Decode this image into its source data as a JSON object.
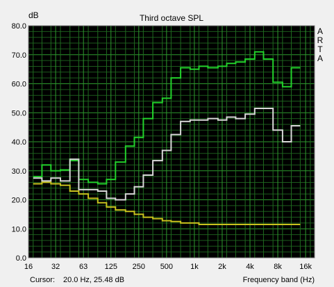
{
  "chart_data": {
    "type": "line",
    "title": "Third octave SPL",
    "ylabel": "dB",
    "xlabel": "Frequency band (Hz)",
    "x_scale": "log",
    "ylim": [
      0,
      80
    ],
    "xlim": [
      16,
      20000
    ],
    "grid": true,
    "y_ticks": [
      "80.0",
      "70.0",
      "60.0",
      "50.0",
      "40.0",
      "30.0",
      "20.0",
      "10.0",
      "0.0"
    ],
    "x_tick_labels": [
      "16",
      "32",
      "63",
      "125",
      "250",
      "500",
      "1k",
      "2k",
      "4k",
      "8k",
      "16k"
    ],
    "x_ticks": [
      16,
      31.5,
      63,
      125,
      250,
      500,
      1000,
      2000,
      4000,
      8000,
      16000
    ],
    "band_edges": [
      18,
      22.4,
      28,
      35.5,
      45,
      56,
      71,
      90,
      112,
      140,
      180,
      224,
      280,
      355,
      450,
      560,
      710,
      900,
      1120,
      1400,
      1800,
      2240,
      2800,
      3550,
      4500,
      5600,
      7100,
      9000,
      11200,
      14000,
      18000,
      22400
    ],
    "series": [
      {
        "color": "#22d22b",
        "values": [
          28,
          32,
          30,
          30.3,
          33.5,
          27,
          26,
          25.5,
          27,
          33,
          38.5,
          41.5,
          48,
          53.5,
          55,
          62,
          65.5,
          65,
          66,
          65.5,
          66,
          67,
          67.5,
          68.5,
          71,
          68.5,
          60.5,
          59,
          65.5
        ]
      },
      {
        "color": "#d8d8d8",
        "values": [
          27.5,
          26.5,
          27.5,
          26.5,
          34,
          23.5,
          23.5,
          23,
          20.5,
          20,
          22,
          24.5,
          28.5,
          33.5,
          37,
          42.5,
          47,
          47.5,
          47.5,
          48,
          47.5,
          48.5,
          48,
          49.5,
          51.5,
          51.5,
          44,
          40,
          45.5
        ]
      },
      {
        "color": "#c8c21e",
        "values": [
          25.5,
          26,
          25.5,
          25,
          23,
          22,
          20.5,
          19,
          17.5,
          16.5,
          16,
          15,
          14,
          13.5,
          12.8,
          12.5,
          12,
          12,
          11.5,
          11.5,
          11.5,
          11.5,
          11.5,
          11.5,
          11.5,
          11.5,
          11.5,
          11.5,
          11.5
        ]
      }
    ],
    "side_text": [
      "A",
      "R",
      "T",
      "A"
    ]
  },
  "status": {
    "cursor_label": "Cursor:",
    "cursor_value": "20.0 Hz, 25.48 dB"
  }
}
